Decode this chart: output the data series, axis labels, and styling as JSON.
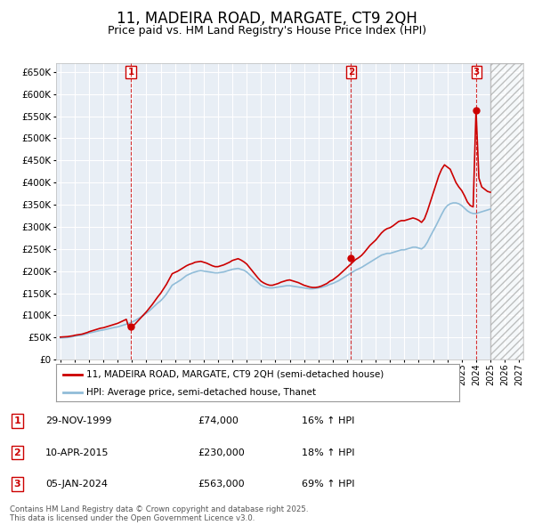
{
  "title": "11, MADEIRA ROAD, MARGATE, CT9 2QH",
  "subtitle": "Price paid vs. HM Land Registry's House Price Index (HPI)",
  "title_fontsize": 12,
  "subtitle_fontsize": 9,
  "ylim": [
    0,
    670000
  ],
  "yticks": [
    0,
    50000,
    100000,
    150000,
    200000,
    250000,
    300000,
    350000,
    400000,
    450000,
    500000,
    550000,
    600000,
    650000
  ],
  "xlim_start": 1994.7,
  "xlim_end": 2027.3,
  "background_color": "#ffffff",
  "plot_bg_color": "#e8eef5",
  "grid_color": "#ffffff",
  "sale_color": "#cc0000",
  "hpi_color": "#90bcd8",
  "dashed_line_color": "#cc0000",
  "hatched_region_start": 2025.0,
  "hatched_region_end": 2027.3,
  "hpi_line": {
    "years": [
      1995.0,
      1995.1,
      1995.2,
      1995.3,
      1995.4,
      1995.5,
      1995.6,
      1995.7,
      1995.8,
      1995.9,
      1996.0,
      1996.1,
      1996.2,
      1996.3,
      1996.4,
      1996.5,
      1996.6,
      1996.7,
      1996.8,
      1996.9,
      1997.0,
      1997.2,
      1997.4,
      1997.6,
      1997.8,
      1998.0,
      1998.2,
      1998.4,
      1998.6,
      1998.8,
      1999.0,
      1999.2,
      1999.4,
      1999.6,
      1999.8,
      2000.0,
      2000.2,
      2000.4,
      2000.6,
      2000.8,
      2001.0,
      2001.2,
      2001.4,
      2001.6,
      2001.8,
      2002.0,
      2002.2,
      2002.4,
      2002.6,
      2002.8,
      2003.0,
      2003.2,
      2003.4,
      2003.6,
      2003.8,
      2004.0,
      2004.2,
      2004.4,
      2004.6,
      2004.8,
      2005.0,
      2005.2,
      2005.4,
      2005.6,
      2005.8,
      2006.0,
      2006.2,
      2006.4,
      2006.6,
      2006.8,
      2007.0,
      2007.2,
      2007.4,
      2007.6,
      2007.8,
      2008.0,
      2008.2,
      2008.4,
      2008.6,
      2008.8,
      2009.0,
      2009.2,
      2009.4,
      2009.6,
      2009.8,
      2010.0,
      2010.2,
      2010.4,
      2010.6,
      2010.8,
      2011.0,
      2011.2,
      2011.4,
      2011.6,
      2011.8,
      2012.0,
      2012.2,
      2012.4,
      2012.6,
      2012.8,
      2013.0,
      2013.2,
      2013.4,
      2013.6,
      2013.8,
      2014.0,
      2014.2,
      2014.4,
      2014.6,
      2014.8,
      2015.0,
      2015.2,
      2015.4,
      2015.6,
      2015.8,
      2016.0,
      2016.2,
      2016.4,
      2016.6,
      2016.8,
      2017.0,
      2017.2,
      2017.4,
      2017.6,
      2017.8,
      2018.0,
      2018.2,
      2018.4,
      2018.6,
      2018.8,
      2019.0,
      2019.2,
      2019.4,
      2019.6,
      2019.8,
      2020.0,
      2020.2,
      2020.4,
      2020.6,
      2020.8,
      2021.0,
      2021.2,
      2021.4,
      2021.6,
      2021.8,
      2022.0,
      2022.2,
      2022.4,
      2022.6,
      2022.8,
      2023.0,
      2023.2,
      2023.4,
      2023.6,
      2023.8,
      2024.0,
      2024.2,
      2024.4,
      2024.6,
      2024.8,
      2025.0
    ],
    "values": [
      49000,
      49200,
      49400,
      49600,
      49800,
      50000,
      50500,
      51000,
      51500,
      52000,
      53000,
      53500,
      54000,
      54500,
      55000,
      55500,
      56000,
      57000,
      58000,
      59000,
      60000,
      61500,
      63000,
      64500,
      66000,
      67000,
      68500,
      70000,
      71500,
      73000,
      74000,
      76000,
      78000,
      80000,
      82000,
      85000,
      88000,
      92000,
      96000,
      100000,
      105000,
      110000,
      116000,
      122000,
      128000,
      133000,
      140000,
      148000,
      158000,
      168000,
      172000,
      176000,
      180000,
      185000,
      190000,
      193000,
      196000,
      198000,
      200000,
      201000,
      200000,
      199000,
      198000,
      197000,
      196000,
      196000,
      197000,
      198000,
      200000,
      202000,
      204000,
      205000,
      206000,
      204000,
      202000,
      198000,
      192000,
      186000,
      180000,
      174000,
      168000,
      165000,
      163000,
      162000,
      162000,
      163000,
      164000,
      165000,
      166000,
      167000,
      167000,
      166000,
      165000,
      164000,
      163000,
      162000,
      161000,
      160000,
      160000,
      161000,
      162000,
      163000,
      165000,
      167000,
      170000,
      172000,
      175000,
      178000,
      182000,
      186000,
      190000,
      194000,
      198000,
      202000,
      205000,
      208000,
      212000,
      216000,
      220000,
      224000,
      228000,
      232000,
      236000,
      238000,
      240000,
      240000,
      242000,
      244000,
      246000,
      248000,
      248000,
      250000,
      252000,
      254000,
      254000,
      252000,
      250000,
      255000,
      265000,
      278000,
      290000,
      302000,
      315000,
      328000,
      340000,
      348000,
      352000,
      354000,
      354000,
      352000,
      348000,
      342000,
      336000,
      332000,
      330000,
      330000,
      332000,
      334000,
      336000,
      338000,
      340000
    ]
  },
  "price_line": {
    "years": [
      1995.0,
      1995.1,
      1995.2,
      1995.3,
      1995.4,
      1995.5,
      1995.6,
      1995.7,
      1995.8,
      1995.9,
      1996.0,
      1996.1,
      1996.2,
      1996.3,
      1996.4,
      1996.5,
      1996.6,
      1996.7,
      1996.8,
      1996.9,
      1997.0,
      1997.2,
      1997.4,
      1997.6,
      1997.8,
      1998.0,
      1998.2,
      1998.4,
      1998.6,
      1998.8,
      1999.0,
      1999.2,
      1999.4,
      1999.6,
      1999.8,
      2000.0,
      2000.2,
      2000.4,
      2000.6,
      2000.8,
      2001.0,
      2001.2,
      2001.4,
      2001.6,
      2001.8,
      2002.0,
      2002.2,
      2002.4,
      2002.6,
      2002.8,
      2003.0,
      2003.2,
      2003.4,
      2003.6,
      2003.8,
      2004.0,
      2004.2,
      2004.4,
      2004.6,
      2004.8,
      2005.0,
      2005.2,
      2005.4,
      2005.6,
      2005.8,
      2006.0,
      2006.2,
      2006.4,
      2006.6,
      2006.8,
      2007.0,
      2007.2,
      2007.4,
      2007.6,
      2007.8,
      2008.0,
      2008.2,
      2008.4,
      2008.6,
      2008.8,
      2009.0,
      2009.2,
      2009.4,
      2009.6,
      2009.8,
      2010.0,
      2010.2,
      2010.4,
      2010.6,
      2010.8,
      2011.0,
      2011.2,
      2011.4,
      2011.6,
      2011.8,
      2012.0,
      2012.2,
      2012.4,
      2012.6,
      2012.8,
      2013.0,
      2013.2,
      2013.4,
      2013.6,
      2013.8,
      2014.0,
      2014.2,
      2014.4,
      2014.6,
      2014.8,
      2015.0,
      2015.2,
      2015.4,
      2015.6,
      2015.8,
      2016.0,
      2016.2,
      2016.4,
      2016.6,
      2016.8,
      2017.0,
      2017.2,
      2017.4,
      2017.6,
      2017.8,
      2018.0,
      2018.2,
      2018.4,
      2018.6,
      2018.8,
      2019.0,
      2019.2,
      2019.4,
      2019.6,
      2019.8,
      2020.0,
      2020.2,
      2020.4,
      2020.6,
      2020.8,
      2021.0,
      2021.2,
      2021.4,
      2021.6,
      2021.8,
      2022.0,
      2022.2,
      2022.4,
      2022.6,
      2022.8,
      2023.0,
      2023.2,
      2023.4,
      2023.6,
      2023.8,
      2024.0,
      2024.2,
      2024.4,
      2024.6,
      2024.8,
      2025.0
    ],
    "values": [
      51000,
      51200,
      51400,
      51600,
      51800,
      52000,
      52500,
      53000,
      53500,
      54000,
      55000,
      55500,
      56000,
      56500,
      57000,
      57500,
      58500,
      59500,
      60500,
      61500,
      63000,
      65000,
      67000,
      69000,
      71000,
      72000,
      74000,
      76000,
      78000,
      80000,
      82000,
      85000,
      88000,
      91000,
      70000,
      74000,
      80000,
      87000,
      94000,
      101000,
      108000,
      116000,
      124000,
      133000,
      142000,
      150000,
      160000,
      170000,
      182000,
      194000,
      197000,
      200000,
      204000,
      208000,
      212000,
      215000,
      217000,
      220000,
      221000,
      222000,
      220000,
      218000,
      215000,
      212000,
      210000,
      210000,
      212000,
      214000,
      217000,
      220000,
      224000,
      226000,
      228000,
      225000,
      221000,
      216000,
      208000,
      200000,
      192000,
      184000,
      177000,
      173000,
      170000,
      168000,
      168000,
      170000,
      172000,
      175000,
      177000,
      179000,
      180000,
      178000,
      176000,
      174000,
      171000,
      168000,
      166000,
      164000,
      163000,
      163000,
      164000,
      166000,
      169000,
      172000,
      177000,
      180000,
      185000,
      190000,
      196000,
      202000,
      208000,
      214000,
      220000,
      226000,
      230000,
      235000,
      242000,
      250000,
      258000,
      264000,
      270000,
      278000,
      286000,
      292000,
      296000,
      298000,
      302000,
      307000,
      312000,
      314000,
      314000,
      316000,
      318000,
      320000,
      318000,
      315000,
      310000,
      318000,
      335000,
      355000,
      375000,
      395000,
      415000,
      430000,
      440000,
      435000,
      430000,
      415000,
      400000,
      390000,
      382000,
      370000,
      356000,
      348000,
      345000,
      563000,
      410000,
      390000,
      385000,
      380000,
      378000
    ]
  },
  "sales": [
    {
      "year": 1999.92,
      "price": 74000,
      "label": "1"
    },
    {
      "year": 2015.28,
      "price": 230000,
      "label": "2"
    },
    {
      "year": 2024.03,
      "price": 563000,
      "label": "3"
    }
  ],
  "legend_property_label": "11, MADEIRA ROAD, MARGATE, CT9 2QH (semi-detached house)",
  "legend_hpi_label": "HPI: Average price, semi-detached house, Thanet",
  "table_entries": [
    {
      "num": "1",
      "date": "29-NOV-1999",
      "price": "£74,000",
      "change": "16% ↑ HPI"
    },
    {
      "num": "2",
      "date": "10-APR-2015",
      "price": "£230,000",
      "change": "18% ↑ HPI"
    },
    {
      "num": "3",
      "date": "05-JAN-2024",
      "price": "£563,000",
      "change": "69% ↑ HPI"
    }
  ],
  "footer": "Contains HM Land Registry data © Crown copyright and database right 2025.\nThis data is licensed under the Open Government Licence v3.0.",
  "xtick_years": [
    1995,
    1996,
    1997,
    1998,
    1999,
    2000,
    2001,
    2002,
    2003,
    2004,
    2005,
    2006,
    2007,
    2008,
    2009,
    2010,
    2011,
    2012,
    2013,
    2014,
    2015,
    2016,
    2017,
    2018,
    2019,
    2020,
    2021,
    2022,
    2023,
    2024,
    2025,
    2026,
    2027
  ]
}
